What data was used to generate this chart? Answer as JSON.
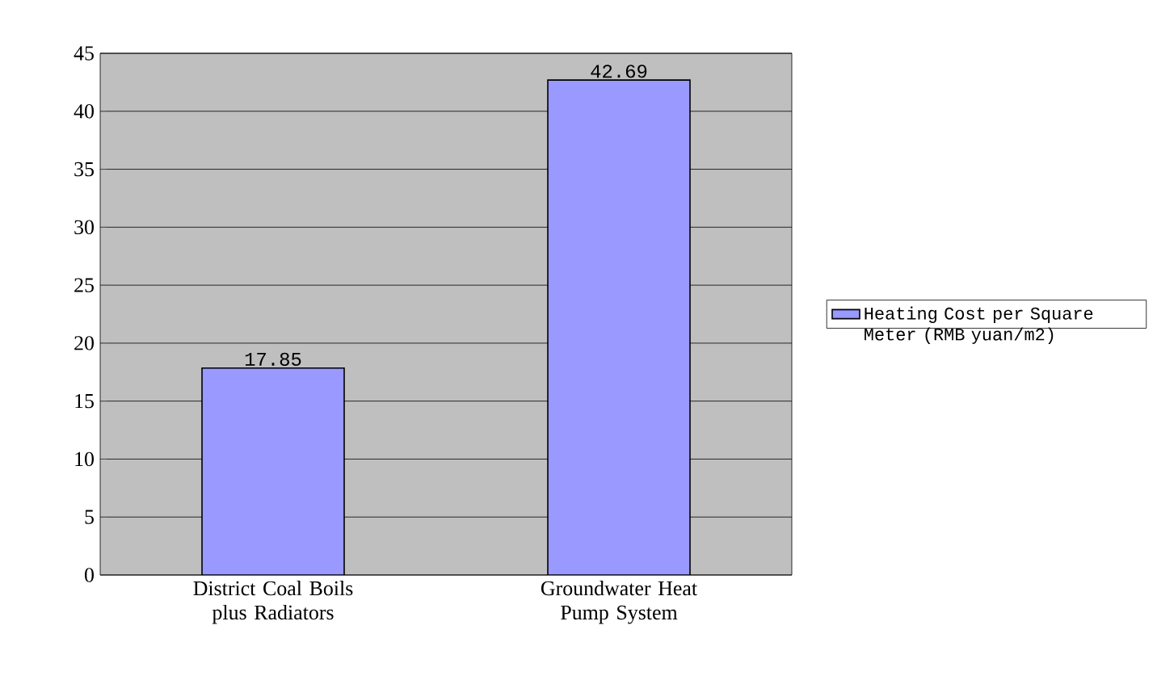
{
  "chart_data": {
    "type": "bar",
    "categories": [
      "District Coal Boils plus Radiators",
      "Groundwater Heat Pump System"
    ],
    "series": [
      {
        "name": "Heating Cost per Square Meter (RMB yuan/m2)",
        "color": "#9999ff",
        "values": [
          17.85,
          42.69
        ]
      }
    ],
    "ylim": [
      0,
      45
    ],
    "yticks": [
      0,
      5,
      10,
      15,
      20,
      25,
      30,
      35,
      40,
      45
    ],
    "grid": "y",
    "legend": "right",
    "data_labels": true
  }
}
